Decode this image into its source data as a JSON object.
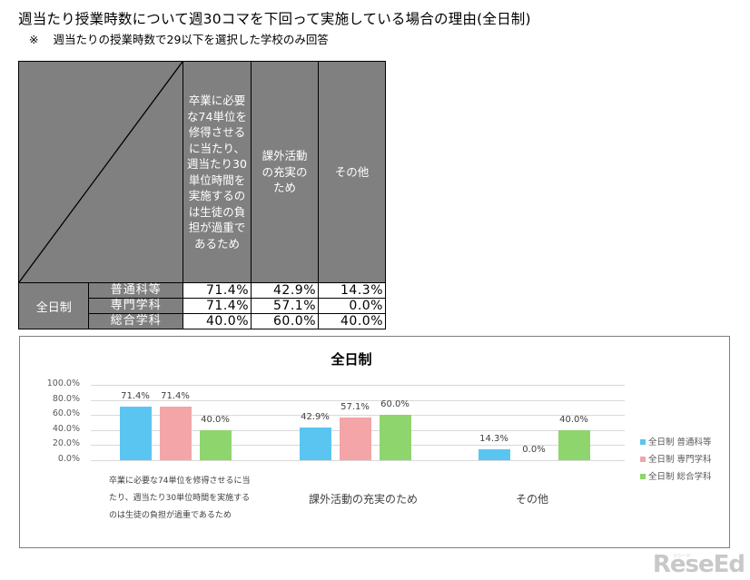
{
  "header": {
    "title": "週当たり授業時数について週30コマを下回って実施している場合の理由(全日制)",
    "note_mark": "※",
    "note": "週当たりの授業時数で29以下を選択した学校のみ回答"
  },
  "table": {
    "columns": [
      "卒業に必要な74単位を修得させるに当たり、週当たり30単位時間を実施するのは生徒の負担が過重であるため",
      "課外活動の充実のため",
      "その他"
    ],
    "column_lines": [
      [
        "卒業に必要",
        "な74単位を",
        "修得させる",
        "に当たり、",
        "週当たり30",
        "単位時間を",
        "実施するの",
        "は生徒の負",
        "担が過重で",
        "あるため"
      ],
      [
        "課外活動",
        "の充実の",
        "ため"
      ],
      [
        "その他"
      ]
    ],
    "group_label": "全日制",
    "rows": [
      {
        "label": "普通科等",
        "values": [
          "71.4%",
          "42.9%",
          "14.3%"
        ]
      },
      {
        "label": "専門学科",
        "values": [
          "71.4%",
          "57.1%",
          "0.0%"
        ]
      },
      {
        "label": "総合学科",
        "values": [
          "40.0%",
          "60.0%",
          "40.0%"
        ]
      }
    ]
  },
  "chart_data": {
    "type": "bar",
    "title": "全日制",
    "categories": [
      "卒業に必要な74単位を修得させるに当たり、週当たり30単位時間を実施するのは生徒の負担が過重であるため",
      "課外活動の充実のため",
      "その他"
    ],
    "category_lines": [
      [
        "卒業に必要な74単位を修得させるに当",
        "たり、週当たり30単位時間を実施する",
        "のは生徒の負担が過重であるため"
      ],
      [
        "課外活動の充実のため"
      ],
      [
        "その他"
      ]
    ],
    "series": [
      {
        "name": "全日制 普通科等",
        "color": "#5BC5F2",
        "values": [
          71.4,
          42.9,
          14.3
        ],
        "labels": [
          "71.4%",
          "42.9%",
          "14.3%"
        ]
      },
      {
        "name": "全日制 専門学科",
        "color": "#F4A5A7",
        "values": [
          71.4,
          57.1,
          0.0
        ],
        "labels": [
          "71.4%",
          "57.1%",
          "0.0%"
        ]
      },
      {
        "name": "全日制 総合学科",
        "color": "#8ED56E",
        "values": [
          40.0,
          60.0,
          40.0
        ],
        "labels": [
          "40.0%",
          "60.0%",
          "40.0%"
        ]
      }
    ],
    "yticks": [
      "100.0%",
      "80.0%",
      "60.0%",
      "40.0%",
      "20.0%",
      "0.0%"
    ],
    "ylim": [
      0,
      100
    ],
    "xlabel": "",
    "ylabel": "",
    "grid": true,
    "legend_position": "right"
  },
  "watermark": {
    "text": "ReseEd",
    "ruby": "リシード"
  }
}
